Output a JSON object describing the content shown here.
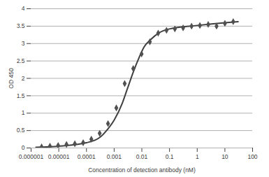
{
  "chart_data": {
    "type": "scatter",
    "x_label": "Concentration of detection antibody (nM)",
    "y_label": "OD 450",
    "log": "x",
    "grid": true,
    "xlim": [
      1e-06,
      100
    ],
    "xticks": [
      1e-06,
      1e-05,
      0.0001,
      0.001,
      0.01,
      0.1,
      1,
      10,
      100
    ],
    "ylim": [
      0,
      4
    ],
    "yticks": [
      0,
      0.5,
      1,
      1.5,
      2,
      2.5,
      3,
      3.5,
      4
    ],
    "series": [
      {
        "type": "line",
        "color": "#404040",
        "line_style": "solid",
        "x": [
          1.5e-06,
          1e-05,
          0.0001,
          0.0003,
          0.0006,
          0.001,
          0.002,
          0.003,
          0.005,
          0.008,
          0.012,
          0.02,
          0.04,
          0.1,
          1,
          10,
          30
        ],
        "values": [
          0.02,
          0.05,
          0.15,
          0.3,
          0.55,
          0.8,
          1.3,
          1.7,
          2.2,
          2.6,
          2.9,
          3.1,
          3.3,
          3.42,
          3.52,
          3.6,
          3.63
        ]
      },
      {
        "type": "scatter",
        "color": "#505050",
        "marker": "diamond",
        "x": [
          2.4e-06,
          4.8e-06,
          9.5e-06,
          1.9e-05,
          3.8e-05,
          7.6e-05,
          0.00015,
          0.0003,
          0.0006,
          0.0012,
          0.0024,
          0.0049,
          0.0098,
          0.0195,
          0.039,
          0.078,
          0.156,
          0.31,
          0.625,
          1.25,
          2.5,
          5,
          10,
          20
        ],
        "values": [
          0.03,
          0.05,
          0.07,
          0.1,
          0.12,
          0.15,
          0.25,
          0.42,
          0.7,
          1.15,
          1.85,
          2.28,
          2.7,
          3.05,
          3.3,
          3.38,
          3.42,
          3.45,
          3.5,
          3.52,
          3.55,
          3.5,
          3.58,
          3.63
        ]
      }
    ]
  }
}
